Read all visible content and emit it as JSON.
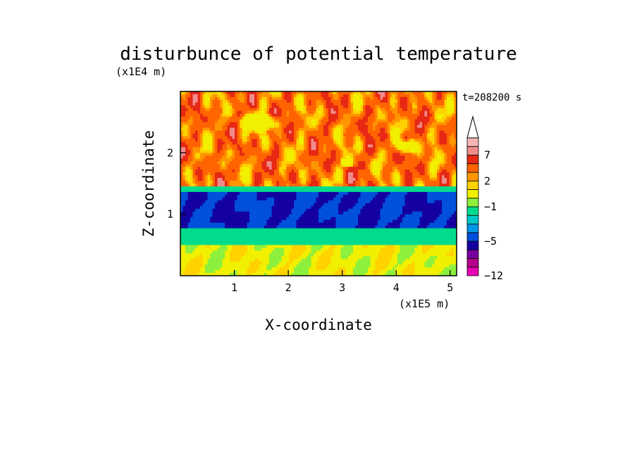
{
  "chart_data": {
    "type": "heatmap",
    "title": "disturbunce of potential temperature",
    "time_label": "t=208200 s",
    "xlabel": "X-coordinate",
    "ylabel": "Z-coordinate",
    "x_unit": "(x1E5 m)",
    "y_unit": "(x1E4 m)",
    "xlim": [
      0,
      5.12
    ],
    "ylim": [
      0,
      3.0
    ],
    "x_ticks": [
      "1",
      "2",
      "3",
      "4",
      "5"
    ],
    "y_ticks": [
      "1",
      "2"
    ],
    "colorbar": {
      "levels": [
        -12,
        -10,
        -8,
        -6,
        -5,
        -4,
        -3,
        -2,
        -1,
        0,
        1,
        2,
        3,
        5,
        7,
        8,
        9
      ],
      "tick_labels": [
        "7",
        "2",
        "−1",
        "−5",
        "−12"
      ],
      "colors": [
        "#e800b4",
        "#b4008c",
        "#7800a0",
        "#1400a0",
        "#0050dc",
        "#0096e6",
        "#00c8c8",
        "#00dc8c",
        "#8cf03c",
        "#f0f000",
        "#ffd200",
        "#ff9600",
        "#ff6400",
        "#e62814",
        "#f08c8c",
        "#f5b4b4"
      ],
      "extend": "max"
    },
    "bands": [
      {
        "z_range": [
          0.0,
          0.5
        ],
        "value_range": [
          -1,
          2
        ]
      },
      {
        "z_range": [
          0.5,
          0.75
        ],
        "value_range": [
          -2,
          -1
        ]
      },
      {
        "z_range": [
          0.75,
          1.35
        ],
        "value_range": [
          -6,
          -4
        ]
      },
      {
        "z_range": [
          1.35,
          1.45
        ],
        "value_range": [
          -2,
          -1
        ]
      },
      {
        "z_range": [
          1.45,
          3.0
        ],
        "value_range": [
          0,
          7
        ]
      }
    ]
  }
}
